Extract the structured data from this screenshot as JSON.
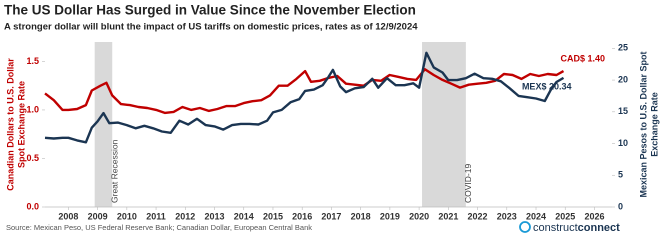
{
  "chart_data": {
    "type": "line",
    "title": "The US Dollar Has Surged in Value Since the November Election",
    "subtitle": "A stronger dollar will blunt the impact of US tariffs on domestic prices, rates as of 12/9/2024",
    "ylabel": [
      "Canadian Dollars to U.S. Dollar",
      "Spot Exchange Rate"
    ],
    "y2label": [
      "Mexican Pesos to U.S. Dollar Spot",
      "Exchange Rate"
    ],
    "source": "Source:  Mexican Peso, US Federal Reserve Bank; Canadian Dollar, European Central Bank",
    "logo": {
      "light": "construct",
      "bold": "connect"
    },
    "xlim": [
      2007.2,
      2026.6
    ],
    "xticks": [
      2008,
      2009,
      2010,
      2011,
      2012,
      2013,
      2014,
      2015,
      2016,
      2017,
      2018,
      2019,
      2020,
      2021,
      2022,
      2023,
      2024,
      2025,
      2026
    ],
    "ylim": [
      0,
      1.7
    ],
    "yticks": [
      {
        "value": 0,
        "label": "0.0"
      },
      0.5,
      {
        "value": 1,
        "label": "1.0"
      },
      1.5
    ],
    "y2lim": [
      0,
      26
    ],
    "y2ticks": [
      0,
      5,
      10,
      15,
      20,
      25
    ],
    "grid": false,
    "shaded_periods": [
      {
        "label": "Great Recession",
        "start": 2008.9,
        "end": 2009.5,
        "color": "#d9d9d9"
      },
      {
        "label": "COVID-19",
        "start": 2020.1,
        "end": 2021.6,
        "color": "#d9d9d9"
      }
    ],
    "series": [
      {
        "name": "CAD$",
        "end_label": "CAD$ 1.40",
        "color": "#c00000",
        "axis": "y",
        "x": [
          2007.2,
          2007.5,
          2007.8,
          2008.0,
          2008.3,
          2008.6,
          2008.8,
          2009.1,
          2009.3,
          2009.5,
          2009.8,
          2010.1,
          2010.4,
          2010.7,
          2011.0,
          2011.3,
          2011.6,
          2011.9,
          2012.2,
          2012.5,
          2012.8,
          2013.1,
          2013.4,
          2013.7,
          2014.0,
          2014.3,
          2014.6,
          2014.9,
          2015.2,
          2015.5,
          2015.8,
          2016.1,
          2016.3,
          2016.6,
          2016.9,
          2017.2,
          2017.5,
          2017.8,
          2018.1,
          2018.4,
          2018.7,
          2018.99,
          2019.3,
          2019.6,
          2019.9,
          2020.2,
          2020.5,
          2020.8,
          2021.1,
          2021.4,
          2021.7,
          2022.0,
          2022.3,
          2022.6,
          2022.9,
          2023.2,
          2023.5,
          2023.8,
          2024.1,
          2024.4,
          2024.7,
          2024.94
        ],
        "values": [
          1.17,
          1.1,
          1.0,
          1.0,
          1.01,
          1.05,
          1.2,
          1.25,
          1.28,
          1.15,
          1.06,
          1.05,
          1.03,
          1.02,
          1.0,
          0.97,
          0.98,
          1.03,
          1.0,
          1.02,
          0.99,
          1.01,
          1.04,
          1.04,
          1.07,
          1.09,
          1.1,
          1.15,
          1.25,
          1.25,
          1.32,
          1.4,
          1.29,
          1.3,
          1.33,
          1.35,
          1.27,
          1.26,
          1.25,
          1.31,
          1.3,
          1.36,
          1.34,
          1.32,
          1.31,
          1.42,
          1.36,
          1.31,
          1.27,
          1.23,
          1.26,
          1.27,
          1.28,
          1.3,
          1.37,
          1.36,
          1.32,
          1.37,
          1.35,
          1.37,
          1.36,
          1.4
        ]
      },
      {
        "name": "MEX$",
        "end_label": "MEX$ 20.34",
        "color": "#1b3552",
        "axis": "y2",
        "x": [
          2007.2,
          2007.5,
          2007.8,
          2008.0,
          2008.3,
          2008.6,
          2008.8,
          2009.0,
          2009.2,
          2009.4,
          2009.7,
          2010.0,
          2010.3,
          2010.6,
          2010.9,
          2011.2,
          2011.5,
          2011.8,
          2012.1,
          2012.4,
          2012.7,
          2013.0,
          2013.3,
          2013.6,
          2013.9,
          2014.2,
          2014.5,
          2014.8,
          2015.0,
          2015.3,
          2015.6,
          2015.9,
          2016.1,
          2016.4,
          2016.7,
          2016.9,
          2017.05,
          2017.3,
          2017.5,
          2017.8,
          2018.1,
          2018.4,
          2018.6,
          2018.9,
          2019.2,
          2019.5,
          2019.8,
          2020.0,
          2020.25,
          2020.5,
          2020.8,
          2021.0,
          2021.3,
          2021.6,
          2021.9,
          2022.2,
          2022.5,
          2022.8,
          2023.1,
          2023.4,
          2023.7,
          2024.0,
          2024.3,
          2024.5,
          2024.7,
          2024.94
        ],
        "values": [
          10.9,
          10.8,
          10.9,
          10.9,
          10.5,
          10.2,
          12.5,
          13.5,
          14.8,
          13.2,
          13.3,
          12.9,
          12.4,
          12.8,
          12.4,
          11.9,
          11.7,
          13.6,
          13.0,
          13.9,
          12.9,
          12.7,
          12.2,
          12.9,
          13.1,
          13.1,
          13.0,
          13.6,
          14.9,
          15.3,
          16.5,
          17.0,
          18.3,
          18.5,
          19.2,
          20.5,
          21.6,
          19.0,
          18.1,
          18.7,
          18.9,
          20.2,
          18.8,
          20.3,
          19.2,
          19.2,
          19.5,
          18.8,
          24.3,
          22.0,
          21.2,
          20.0,
          20.0,
          20.3,
          21.0,
          20.3,
          20.2,
          19.8,
          18.7,
          17.5,
          17.3,
          17.1,
          16.7,
          18.4,
          19.7,
          20.34
        ]
      }
    ]
  }
}
